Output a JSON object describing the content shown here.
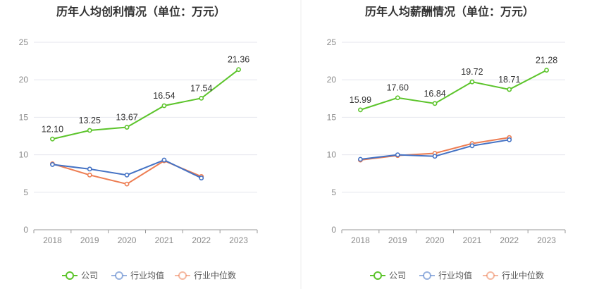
{
  "chart_data": [
    {
      "type": "line",
      "title": "历年人均创利情况（单位：万元）",
      "categories": [
        "2018",
        "2019",
        "2020",
        "2021",
        "2022",
        "2023"
      ],
      "ylim": [
        0,
        25
      ],
      "yticks": [
        0,
        5,
        10,
        15,
        20,
        25
      ],
      "grid": true,
      "legend": "bottom-center",
      "series": [
        {
          "name": "公司",
          "color": "#5cc42b",
          "values": [
            12.1,
            13.25,
            13.67,
            16.54,
            17.54,
            21.36
          ],
          "labels": [
            "12.10",
            "13.25",
            "13.67",
            "16.54",
            "17.54",
            "21.36"
          ]
        },
        {
          "name": "行业均值",
          "color": "#4472c4",
          "values": [
            8.7,
            8.1,
            7.3,
            9.3,
            6.9,
            null
          ]
        },
        {
          "name": "行业中位数",
          "color": "#ed7d52",
          "values": [
            8.8,
            7.3,
            6.1,
            9.2,
            7.1,
            null
          ]
        }
      ]
    },
    {
      "type": "line",
      "title": "历年人均薪酬情况（单位：万元）",
      "categories": [
        "2018",
        "2019",
        "2020",
        "2021",
        "2022",
        "2023"
      ],
      "ylim": [
        0,
        25
      ],
      "yticks": [
        0,
        5,
        10,
        15,
        20,
        25
      ],
      "grid": true,
      "legend": "bottom-center",
      "series": [
        {
          "name": "公司",
          "color": "#5cc42b",
          "values": [
            15.99,
            17.6,
            16.84,
            19.72,
            18.71,
            21.28
          ],
          "labels": [
            "15.99",
            "17.60",
            "16.84",
            "19.72",
            "18.71",
            "21.28"
          ]
        },
        {
          "name": "行业均值",
          "color": "#4472c4",
          "values": [
            9.4,
            10.0,
            9.8,
            11.2,
            12.0,
            null
          ]
        },
        {
          "name": "行业中位数",
          "color": "#ed7d52",
          "values": [
            9.3,
            9.9,
            10.2,
            11.5,
            12.3,
            null
          ]
        }
      ]
    }
  ]
}
